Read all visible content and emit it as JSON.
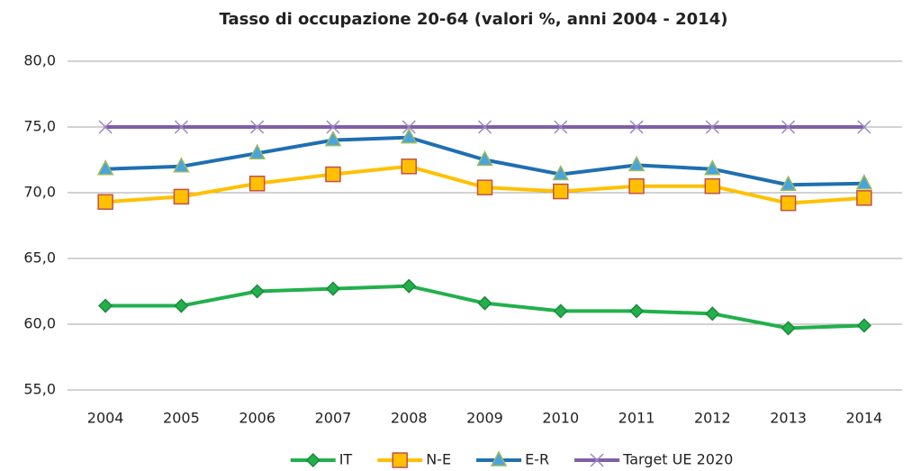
{
  "chart_data": {
    "type": "line",
    "title": "Tasso di occupazione  20-64 (valori %, anni 2004 - 2014)",
    "categories": [
      "2004",
      "2005",
      "2006",
      "2007",
      "2008",
      "2009",
      "2010",
      "2011",
      "2012",
      "2013",
      "2014"
    ],
    "series": [
      {
        "name": "IT",
        "color": "#22b04c",
        "marker": "diamond",
        "marker_color": "#22b04c",
        "marker_edge": "#1b8a3b",
        "values": [
          61.4,
          61.4,
          62.5,
          62.7,
          62.9,
          61.6,
          61.0,
          61.0,
          60.8,
          59.7,
          59.9
        ]
      },
      {
        "name": "N-E",
        "color": "#ffc000",
        "marker": "square",
        "marker_color": "#ffc000",
        "marker_edge": "#c0504d",
        "values": [
          69.3,
          69.7,
          70.7,
          71.4,
          72.0,
          70.4,
          70.1,
          70.5,
          70.5,
          69.2,
          69.6
        ]
      },
      {
        "name": "E-R",
        "color": "#1f6fb2",
        "marker": "triangle",
        "marker_color": "#4aa3df",
        "marker_edge": "#9bbb59",
        "values": [
          71.8,
          72.0,
          73.0,
          74.0,
          74.2,
          72.5,
          71.4,
          72.1,
          71.8,
          70.6,
          70.7
        ]
      },
      {
        "name": "Target UE 2020",
        "color": "#7f5fa8",
        "marker": "x",
        "marker_color": "#7f5fa8",
        "marker_edge": "#9b85c4",
        "values": [
          75,
          75,
          75,
          75,
          75,
          75,
          75,
          75,
          75,
          75,
          75
        ]
      }
    ],
    "ylim": [
      55,
      80
    ],
    "yticks": [
      {
        "value": 55,
        "label": "55,0"
      },
      {
        "value": 60,
        "label": "60,0"
      },
      {
        "value": 65,
        "label": "65,0"
      },
      {
        "value": 70,
        "label": "70,0"
      },
      {
        "value": 75,
        "label": "75,0"
      },
      {
        "value": 80,
        "label": "80,0"
      }
    ],
    "grid": true,
    "legend": "bottom"
  }
}
